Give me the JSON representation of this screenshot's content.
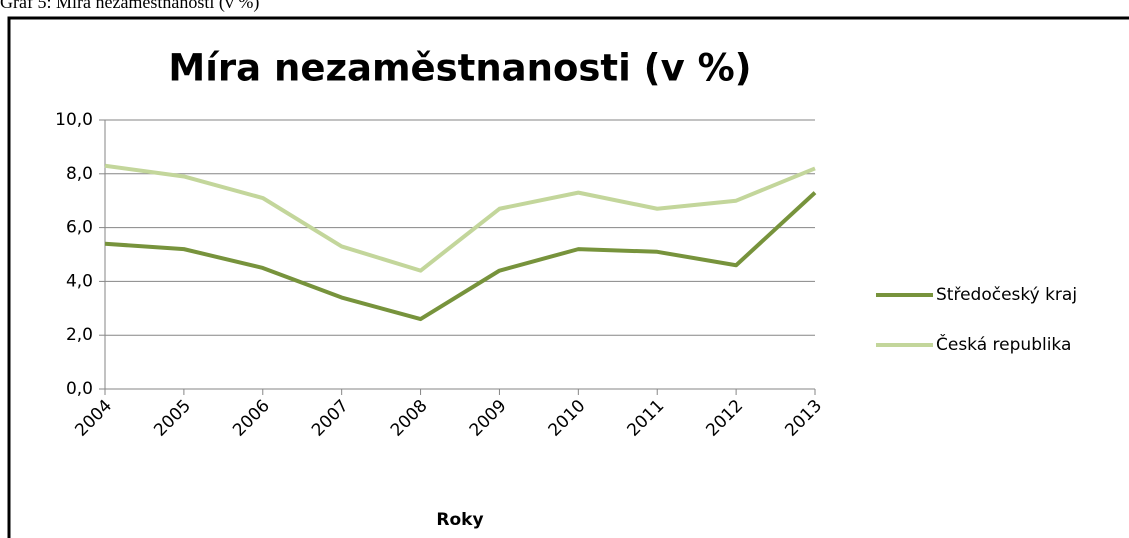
{
  "chart_data": {
    "type": "line",
    "caption": "Graf 5: Míra nezaměstnanosti (v %)",
    "title": "Míra nezaměstnanosti (v %)",
    "x_label": "Roky",
    "categories": [
      "2004",
      "2005",
      "2006",
      "2007",
      "2008",
      "2009",
      "2010",
      "2011",
      "2012",
      "2013"
    ],
    "series": [
      {
        "name": "Středočeský kraj",
        "color": "#77933c",
        "values": [
          5.4,
          5.2,
          4.5,
          3.4,
          2.6,
          4.4,
          5.2,
          5.1,
          4.6,
          7.3
        ]
      },
      {
        "name": "Česká republika",
        "color": "#c3d69b",
        "values": [
          8.3,
          7.9,
          7.1,
          5.3,
          4.4,
          6.7,
          7.3,
          6.7,
          7.0,
          8.2
        ]
      }
    ],
    "ylim": [
      0,
      10
    ],
    "yticks": [
      {
        "value": 0,
        "label": "0,0"
      },
      {
        "value": 2,
        "label": "2,0"
      },
      {
        "value": 4,
        "label": "4,0"
      },
      {
        "value": 6,
        "label": "6,0"
      },
      {
        "value": 8,
        "label": "8,0"
      },
      {
        "value": 10,
        "label": "10,0"
      }
    ],
    "grid": true,
    "legend": "right"
  }
}
